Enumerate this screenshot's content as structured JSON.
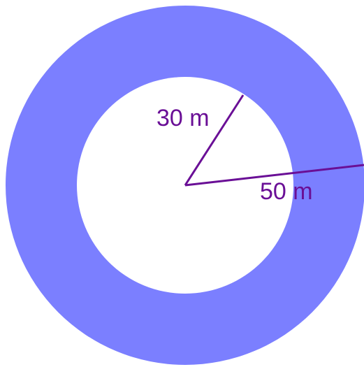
{
  "diagram": {
    "inner_radius": {
      "value": 30,
      "unit": "m",
      "label": "30 m"
    },
    "outer_radius": {
      "value": 50,
      "unit": "m",
      "label": "50 m"
    }
  },
  "colors": {
    "ring": "#7b7fff",
    "center_disk": "#ffffff",
    "radius_lines": "#6a0f96",
    "labels": "#6a0f96"
  }
}
